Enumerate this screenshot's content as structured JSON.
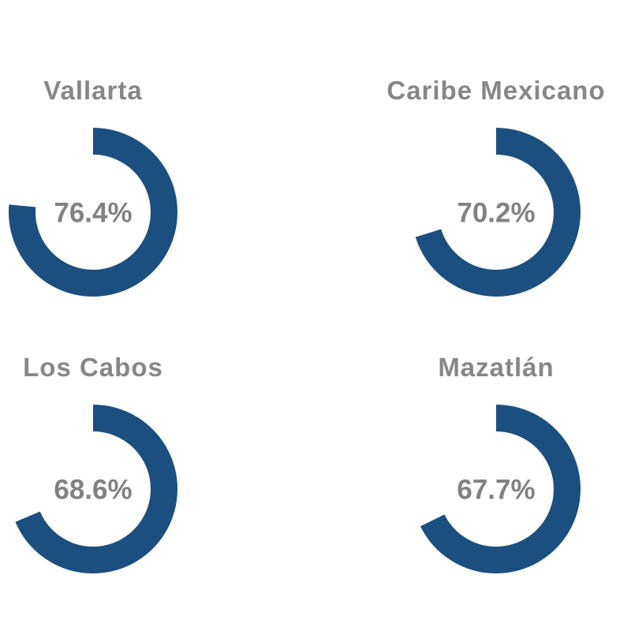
{
  "chart_data": {
    "type": "pie",
    "subtype": "donut_gauge_grid",
    "title": "",
    "max": 100,
    "start_angle_deg": 0,
    "direction": "clockwise",
    "legend": "none",
    "grid": "off",
    "colors": {
      "arc": "#1b4f7f",
      "empty": "#ffffff",
      "title_text": "#878787",
      "label_text": "#828282"
    },
    "charts": [
      {
        "title": "Vallarta",
        "value": 76.4,
        "label": "76.4%"
      },
      {
        "title": "Caribe Mexicano",
        "value": 70.2,
        "label": "70.2%"
      },
      {
        "title": "Los Cabos",
        "value": 68.6,
        "label": "68.6%"
      },
      {
        "title": "Mazatlán",
        "value": 67.7,
        "label": "67.7%"
      }
    ]
  }
}
